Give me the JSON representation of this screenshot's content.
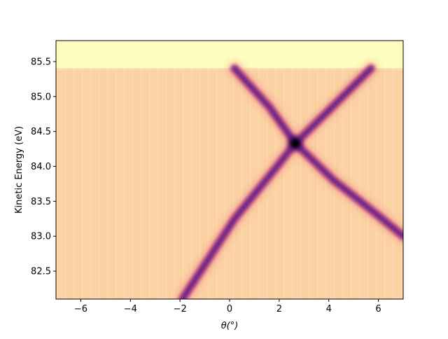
{
  "chart_data": {
    "type": "heatmap",
    "title": "",
    "xlabel": "θ(°)",
    "ylabel": "Kinetic Energy (eV)",
    "xlim": [
      -7,
      7
    ],
    "ylim": [
      82.1,
      85.8
    ],
    "x_ticks": [
      -6,
      -4,
      -2,
      0,
      2,
      4,
      6
    ],
    "x_tick_labels": [
      "−6",
      "−4",
      "−2",
      "0",
      "2",
      "4",
      "6"
    ],
    "y_ticks": [
      82.5,
      83.0,
      83.5,
      84.0,
      84.5,
      85.0,
      85.5
    ],
    "y_tick_labels": [
      "82.5",
      "83.0",
      "83.5",
      "84.0",
      "84.5",
      "85.0",
      "85.5"
    ],
    "colormap": "magma",
    "background_color": "#fcd3a4",
    "saturated_band_color": "#fdfdbe",
    "fermi_edge_energy": 85.4,
    "dirac_point": {
      "theta": 2.65,
      "energy": 84.33
    },
    "bands": [
      {
        "points": [
          {
            "theta": -1.9,
            "energy": 82.1
          },
          {
            "theta": 0.2,
            "energy": 83.25
          },
          {
            "theta": 1.8,
            "energy": 83.95
          },
          {
            "theta": 2.65,
            "energy": 84.33
          },
          {
            "theta": 4.0,
            "energy": 84.8
          },
          {
            "theta": 5.7,
            "energy": 85.4
          }
        ]
      },
      {
        "points": [
          {
            "theta": 0.2,
            "energy": 85.4
          },
          {
            "theta": 1.6,
            "energy": 84.85
          },
          {
            "theta": 2.65,
            "energy": 84.33
          },
          {
            "theta": 4.2,
            "energy": 83.8
          },
          {
            "theta": 5.8,
            "energy": 83.35
          },
          {
            "theta": 7.0,
            "energy": 83.0
          }
        ]
      }
    ]
  }
}
